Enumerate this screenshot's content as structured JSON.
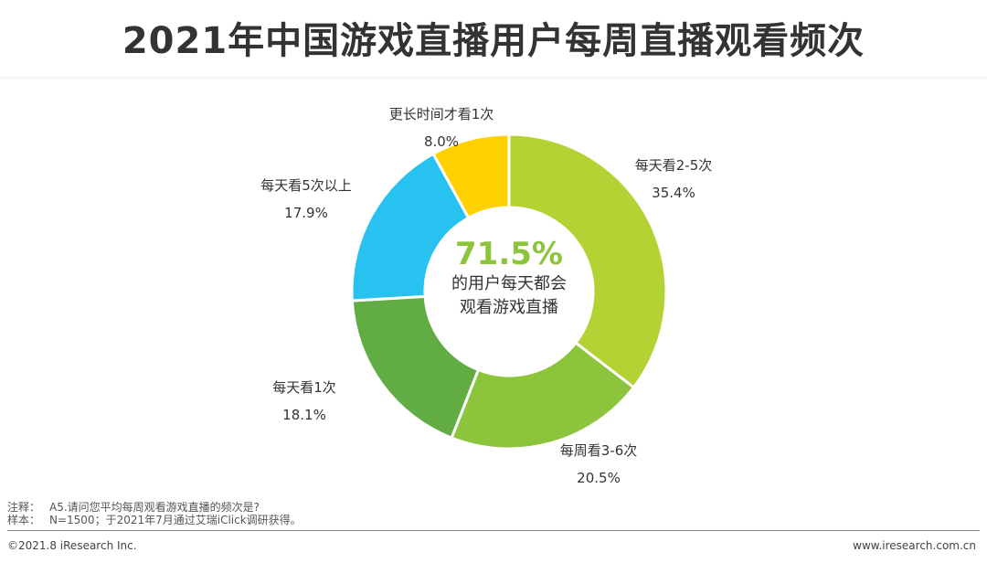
{
  "title": "2021年中国游戏直播用户每周直播观看频次",
  "colors": {
    "green_light": "#b3d334",
    "green_mid": "#8cc43c",
    "green_dark": "#62ac44",
    "sky_blue": "#27c2ef",
    "yellow": "#ffd100",
    "center_text": "#8cc43c"
  },
  "chart_data": {
    "type": "pie",
    "variant": "donut",
    "title": "2021年中国游戏直播用户每周直播观看频次",
    "unit": "%",
    "categories": [
      "每天看2-5次",
      "每周看3-6次",
      "每天看1次",
      "每天看5次以上",
      "更长时间才看1次"
    ],
    "values": [
      35.4,
      20.5,
      18.1,
      17.9,
      8.0
    ],
    "value_labels": [
      "35.4%",
      "20.5%",
      "18.1%",
      "17.9%",
      "8.0%"
    ],
    "colors": [
      "#b3d334",
      "#8cc43c",
      "#62ac44",
      "#27c2ef",
      "#ffd100"
    ],
    "start": "12 o'clock",
    "direction": "clockwise",
    "center_value": "71.5%",
    "center_text": [
      "的用户每天都会",
      "观看游戏直播"
    ]
  },
  "notes": {
    "note_label": "注释：",
    "note_text": "A5.请问您平均每周观看游戏直播的频次是?",
    "sample_label": "样本：",
    "sample_text": "N=1500；于2021年7月通过艾瑞iClick调研获得。"
  },
  "footer": {
    "copyright": "©2021.8 iResearch Inc.",
    "website": "www.iresearch.com.cn"
  }
}
